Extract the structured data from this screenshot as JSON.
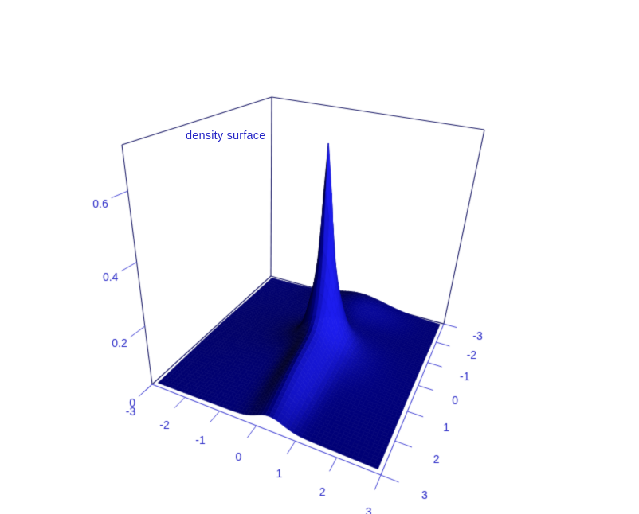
{
  "chart_data": {
    "type": "surface3d",
    "title": "density surface",
    "xlim": [
      -3,
      3
    ],
    "ylim": [
      -3,
      3
    ],
    "zlim": [
      0,
      0.72
    ],
    "x_ticks": {
      "values": [
        -3,
        -2,
        -1,
        0,
        1,
        2,
        3
      ],
      "labels": [
        "-3",
        "-2",
        "-1",
        "0",
        "1",
        "2",
        "3"
      ]
    },
    "y_ticks": {
      "values": [
        -3,
        -2,
        -1,
        0,
        1,
        2,
        3
      ],
      "labels": [
        "-3",
        "-2",
        "-1",
        "0",
        "1",
        "2",
        "3"
      ]
    },
    "z_ticks": {
      "values": [
        0,
        0.2,
        0.4,
        0.6
      ],
      "labels": [
        "0",
        "0.2",
        "0.4",
        "0.6"
      ]
    },
    "legend": null,
    "grid": "off",
    "view": {
      "x_axis_front_edge": true,
      "y_axis_right_edge": true,
      "y_decreases_toward_back_right": true
    },
    "surface": {
      "grid": {
        "xmin": -2.9,
        "xmax": 2.9,
        "ymin": -2.9,
        "ymax": 2.9,
        "n": 59
      },
      "peak": {
        "x": 0.3,
        "y": -0.2,
        "z": 0.7
      },
      "components": [
        {
          "h": 0.33,
          "cx": 0.3,
          "cy": -0.2,
          "sx": 0.1,
          "sy": 0.1
        },
        {
          "h": 0.23,
          "cx": 0.3,
          "cy": -0.2,
          "sx": 0.3,
          "sy": 0.3
        },
        {
          "h": 0.065,
          "cx": 0.3,
          "cy": -0.15,
          "sx": 0.65,
          "sy": 0.65
        },
        {
          "h": 0.085,
          "cx": 0.3,
          "cy": 1.1,
          "sx": 0.33,
          "sy": 1.25
        },
        {
          "h": 0.028,
          "cx": 0.4,
          "cy": 0.2,
          "sx": 1.5,
          "sy": 1.6
        },
        {
          "h": 0.048,
          "cx": 0.35,
          "cy": -2.5,
          "sx": 0.8,
          "sy": 0.55
        },
        {
          "h": 0.006,
          "cx": -1.8,
          "cy": 0.5,
          "sx": 1.0,
          "sy": 1.2
        }
      ]
    },
    "colors": {
      "surface_base": "#0000ff",
      "surface_flat": "#000079",
      "surface_bright": "#1c1ccc",
      "surface_shadow": "#00000f",
      "box_line": "#1a1a66",
      "axis_line": "#4646d4",
      "label_text": "#2626c6",
      "background": "#ffffff"
    }
  }
}
